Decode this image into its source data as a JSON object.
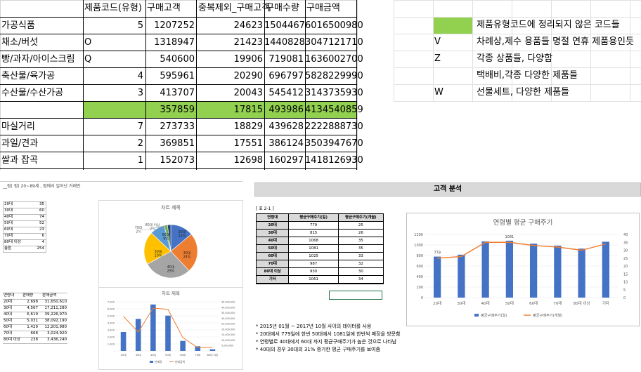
{
  "main_table": {
    "headers": [
      "제품코드(유형)",
      "구매고객",
      "중복제외_구매고객",
      "구매수량",
      "구매금액"
    ],
    "rows": [
      {
        "name": "가공식품",
        "code": "5",
        "a": "1207252",
        "b": "24623",
        "c": "1504467",
        "d": "6016500980"
      },
      {
        "name": "채소/버섯",
        "code": "O",
        "a": "1318947",
        "b": "21423",
        "c": "1440828",
        "d": "3047121710"
      },
      {
        "name": "빵/과자/아이스크림",
        "code": "Q",
        "a": "540600",
        "b": "19906",
        "c": "719081",
        "d": "1636002700"
      },
      {
        "name": "축산물/육가공",
        "code": "4",
        "a": "595961",
        "b": "20290",
        "c": "696797",
        "d": "5828229990"
      },
      {
        "name": "수산물/수산가공",
        "code": "3",
        "a": "413707",
        "b": "20043",
        "c": "545412",
        "d": "3143735930"
      },
      {
        "name": "",
        "code": "",
        "a": "357859",
        "b": "17815",
        "c": "493986",
        "d": "4134540859"
      },
      {
        "name": "마실거리",
        "code": "7",
        "a": "273733",
        "b": "18829",
        "c": "439628",
        "d": "2222888730"
      },
      {
        "name": "과일/견과",
        "code": "2",
        "a": "369851",
        "b": "17551",
        "c": "386124",
        "d": "3503947670"
      },
      {
        "name": "쌀과 잡곡",
        "code": "1",
        "a": "152073",
        "b": "12698",
        "c": "160297",
        "d": "1418126930"
      }
    ],
    "highlight_color": "#92d050"
  },
  "legend": {
    "items": [
      {
        "code": "",
        "text": "제품유형코드에 정리되지 않은 코드들"
      },
      {
        "code": "V",
        "text": "차례상,제수 용품들 명절 연휴 제품용인듯"
      },
      {
        "code": "Z",
        "text": "각종 상품들, 다양함"
      },
      {
        "code": "",
        "text": "택배비,각종 다양한 제품들"
      },
      {
        "code": "W",
        "text": "선물세트, 다양한 제품들"
      }
    ]
  },
  "left_panel": {
    "header_text": "__점(      점)  20~89세 ,        점에서 일어난 거래만",
    "age_table": [
      {
        "age": "20대",
        "v": "35"
      },
      {
        "age": "30대",
        "v": "60"
      },
      {
        "age": "40대",
        "v": "74"
      },
      {
        "age": "50대",
        "v": "52"
      },
      {
        "age": "60대",
        "v": "23"
      },
      {
        "age": "70대",
        "v": "6"
      },
      {
        "age": "80대 이상",
        "v": "4"
      },
      {
        "age": "총합",
        "v": "254"
      }
    ],
    "sales_headers": [
      "연령대",
      "판매량",
      "판매금액"
    ],
    "sales_table": [
      {
        "age": "20대",
        "qty": "2,698",
        "amt": "31,650,610"
      },
      {
        "age": "30대",
        "qty": "4,567",
        "amt": "17,211,280"
      },
      {
        "age": "40대",
        "qty": "6,619",
        "amt": "39,226,970"
      },
      {
        "age": "50대",
        "qty": "5,031",
        "amt": "38,092,190"
      },
      {
        "age": "60대",
        "qty": "1,429",
        "amt": "12,201,980"
      },
      {
        "age": "70대",
        "qty": "668",
        "amt": "3,024,920"
      },
      {
        "age": "80대 이상",
        "qty": "238",
        "amt": "3,436,240"
      }
    ]
  },
  "pie_chart": {
    "title": "차트 제목",
    "labels": [
      "70대\n2%",
      "80대 이상\n2%",
      "20대\n14%",
      "30대\n24%",
      "40대\n29%",
      "50대\n20%",
      "60대\n9%"
    ]
  },
  "combo_chart": {
    "title": "차트 제목",
    "left_ticks": [
      "7,000",
      "6,000",
      "5,000",
      "4,000",
      "3,000",
      "2,000",
      "1,000",
      "-"
    ],
    "right_ticks": [
      "45,000,000",
      "40,000,000",
      "35,000,000",
      "30,000,000",
      "25,000,000",
      "20,000,000",
      "15,000,000",
      "10,000,000",
      "5,000,000",
      "-"
    ],
    "categories": [
      "20대",
      "30대",
      "40대",
      "50대",
      "60대",
      "70대",
      "80대 이상"
    ],
    "legend": [
      "판매량",
      "판매금액"
    ]
  },
  "customer_analysis": {
    "title": "고객 분석",
    "table_label": "[ 표 2-1 ]",
    "headers": [
      "연령대",
      "평균구매주기(일)",
      "평균구매주기(개월)"
    ],
    "rows": [
      {
        "age": "20대",
        "days": "779",
        "months": "25"
      },
      {
        "age": "30대",
        "days": "815",
        "months": "26"
      },
      {
        "age": "40대",
        "days": "1068",
        "months": "35"
      },
      {
        "age": "50대",
        "days": "1081",
        "months": "35"
      },
      {
        "age": "60대",
        "days": "1025",
        "months": "33"
      },
      {
        "age": "70대",
        "days": "987",
        "months": "32"
      },
      {
        "age": "80대 이상",
        "days": "930",
        "months": "30"
      },
      {
        "age": "기타",
        "days": "1061",
        "months": "34"
      }
    ],
    "notes": [
      "* 2015년 01월 ~ 2017년 10월 사이의 데이터를 사용",
      "* 20대에서 779일에 한번 50대에서 1081일에 한번씩 매장을 방문함",
      "* 연령별로 40대에서 60대 까지 평균구매주기가 높은 것으로 나타남",
      "* 40대의 경우 30대의 31% 증가한 평균 구매주기를 보여줌"
    ]
  },
  "chart_data": [
    {
      "type": "pie",
      "title": "차트 제목",
      "categories": [
        "20대",
        "30대",
        "40대",
        "50대",
        "60대",
        "70대",
        "80대 이상"
      ],
      "values": [
        14,
        24,
        29,
        20,
        9,
        2,
        2
      ],
      "colors": [
        "#4472c4",
        "#ed7d31",
        "#a5a5a5",
        "#ffc000",
        "#5b9bd5",
        "#70ad47",
        "#264478"
      ]
    },
    {
      "type": "bar",
      "title": "차트 제목",
      "categories": [
        "20대",
        "30대",
        "40대",
        "50대",
        "60대",
        "70대",
        "80대 이상"
      ],
      "series": [
        {
          "name": "판매량",
          "kind": "bar",
          "axis": "left",
          "values": [
            2698,
            4567,
            6619,
            5031,
            1429,
            668,
            238
          ],
          "color": "#4472c4"
        },
        {
          "name": "판매금액",
          "kind": "line",
          "axis": "right",
          "values": [
            31650610,
            17211280,
            39226970,
            38092190,
            12201980,
            3024920,
            3436240
          ],
          "color": "#ed7d31"
        }
      ],
      "ylim": [
        0,
        7000
      ],
      "y2lim": [
        0,
        45000000
      ]
    },
    {
      "type": "bar",
      "title": "연령별 평균 구매주기",
      "categories": [
        "20대",
        "30대",
        "40대",
        "50대",
        "60대",
        "70대",
        "80대 이상",
        "기타"
      ],
      "series": [
        {
          "name": "평균구매주기(일)",
          "kind": "bar",
          "axis": "left",
          "values": [
            779,
            815,
            1068,
            1081,
            1025,
            987,
            930,
            1061
          ],
          "color": "#4472c4"
        },
        {
          "name": "평균구매주기(개월)",
          "kind": "line",
          "axis": "right",
          "values": [
            25,
            26,
            35,
            35,
            33,
            32,
            30,
            34
          ],
          "color": "#ed7d31"
        }
      ],
      "ylim": [
        0,
        1200
      ],
      "y2lim": [
        0,
        40
      ],
      "left_ticks": [
        "1200",
        "1000",
        "800",
        "600",
        "400",
        "200",
        "0"
      ],
      "right_ticks": [
        "40",
        "35",
        "30",
        "25",
        "20",
        "15",
        "10",
        "5",
        "0"
      ],
      "data_labels": {
        "20대": "779",
        "50대": "1081"
      }
    }
  ]
}
